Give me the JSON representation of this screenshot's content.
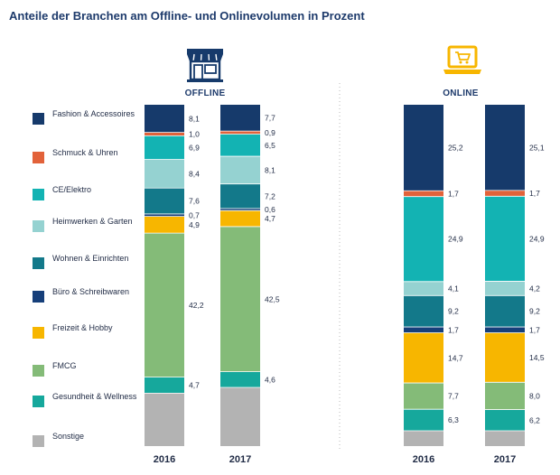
{
  "title": "Anteile der Branchen am Offline- und Onlinevolumen in Prozent",
  "legend": [
    {
      "label": "Fashion & Accessoires",
      "color": "#163a6b"
    },
    {
      "label": "Schmuck & Uhren",
      "color": "#e2623a"
    },
    {
      "label": "CE/Elektro",
      "color": "#13b3b3"
    },
    {
      "label": "Heimwerken & Garten",
      "color": "#95d2d1"
    },
    {
      "label": "Wohnen & Einrichten",
      "color": "#13798a"
    },
    {
      "label": "Büro & Schreibwaren",
      "color": "#163f7a"
    },
    {
      "label": "Freizeit & Hobby",
      "color": "#f7b600"
    },
    {
      "label": "FMCG",
      "color": "#84bb78"
    },
    {
      "label": "Gesundheit & Wellness",
      "color": "#16a89c"
    },
    {
      "label": "Sonstige",
      "color": "#b3b3b3"
    }
  ],
  "icons": {
    "offline": "store-icon",
    "online": "laptop-shopping-cart-icon"
  },
  "chart_data": [
    {
      "type": "bar",
      "stacked": true,
      "name": "OFFLINE",
      "categories": [
        "2016",
        "2017"
      ],
      "unit": "%",
      "series": [
        {
          "name": "Fashion & Accessoires",
          "values": [
            8.1,
            7.7
          ],
          "labels": [
            "8,1",
            "7,7"
          ]
        },
        {
          "name": "Schmuck & Uhren",
          "values": [
            1.0,
            0.9
          ],
          "labels": [
            "1,0",
            "0,9"
          ]
        },
        {
          "name": "CE/Elektro",
          "values": [
            6.9,
            6.5
          ],
          "labels": [
            "6,9",
            "6,5"
          ]
        },
        {
          "name": "Heimwerken & Garten",
          "values": [
            8.4,
            8.1
          ],
          "labels": [
            "8,4",
            "8,1"
          ]
        },
        {
          "name": "Wohnen & Einrichten",
          "values": [
            7.6,
            7.2
          ],
          "labels": [
            "7,6",
            "7,2"
          ]
        },
        {
          "name": "Büro & Schreibwaren",
          "values": [
            0.7,
            0.6
          ],
          "labels": [
            "0,7",
            "0,6"
          ]
        },
        {
          "name": "Freizeit & Hobby",
          "values": [
            4.9,
            4.7
          ],
          "labels": [
            "4,9",
            "4,7"
          ]
        },
        {
          "name": "FMCG",
          "values": [
            42.2,
            42.5
          ],
          "labels": [
            "42,2",
            "42,5"
          ]
        },
        {
          "name": "Gesundheit & Wellness",
          "values": [
            4.7,
            4.6
          ],
          "labels": [
            "4,7",
            "4,6"
          ]
        },
        {
          "name": "Sonstige",
          "values": [
            15.5,
            17.2
          ],
          "labels": [
            "",
            ""
          ]
        }
      ]
    },
    {
      "type": "bar",
      "stacked": true,
      "name": "ONLINE",
      "categories": [
        "2016",
        "2017"
      ],
      "unit": "%",
      "series": [
        {
          "name": "Fashion & Accessoires",
          "values": [
            25.2,
            25.1
          ],
          "labels": [
            "25,2",
            "25,1"
          ]
        },
        {
          "name": "Schmuck & Uhren",
          "values": [
            1.7,
            1.7
          ],
          "labels": [
            "1,7",
            "1,7"
          ]
        },
        {
          "name": "CE/Elektro",
          "values": [
            24.9,
            24.9
          ],
          "labels": [
            "24,9",
            "24,9"
          ]
        },
        {
          "name": "Heimwerken & Garten",
          "values": [
            4.1,
            4.2
          ],
          "labels": [
            "4,1",
            "4,2"
          ]
        },
        {
          "name": "Wohnen & Einrichten",
          "values": [
            9.2,
            9.2
          ],
          "labels": [
            "9,2",
            "9,2"
          ]
        },
        {
          "name": "Büro & Schreibwaren",
          "values": [
            1.7,
            1.7
          ],
          "labels": [
            "1,7",
            "1,7"
          ]
        },
        {
          "name": "Freizeit & Hobby",
          "values": [
            14.7,
            14.5
          ],
          "labels": [
            "14,7",
            "14,5"
          ]
        },
        {
          "name": "FMCG",
          "values": [
            7.7,
            8.0
          ],
          "labels": [
            "7,7",
            "8,0"
          ]
        },
        {
          "name": "Gesundheit & Wellness",
          "values": [
            6.3,
            6.2
          ],
          "labels": [
            "6,3",
            "6,2"
          ]
        },
        {
          "name": "Sonstige",
          "values": [
            4.5,
            4.5
          ],
          "labels": [
            "",
            ""
          ]
        }
      ]
    }
  ]
}
